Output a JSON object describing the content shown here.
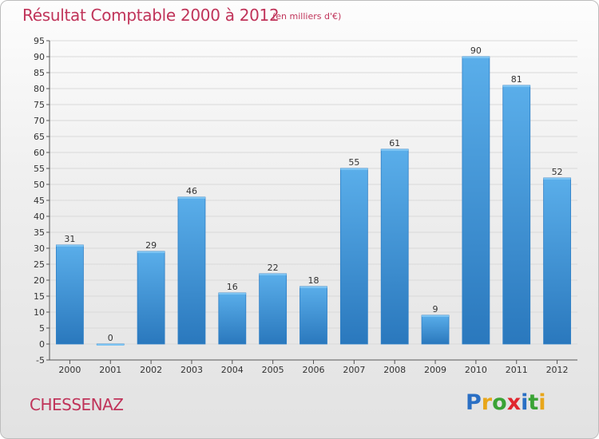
{
  "title": "Résultat Comptable 2000 à 2012",
  "subtitle": "(en milliers d'€)",
  "commune": "CHESSENAZ",
  "logo": {
    "letters": [
      "P",
      "r",
      "o",
      "x",
      "i",
      "t",
      "i"
    ],
    "colors": [
      "#2a6fc4",
      "#e8a61a",
      "#3aa335",
      "#e0262e",
      "#2a6fc4",
      "#3aa335",
      "#e8a61a"
    ]
  },
  "colors": {
    "bar_top": "#5aaeea",
    "bar_bottom": "#2a78bd",
    "bar_edge": "#2e7fc6",
    "grid": "#d9d9d9",
    "title": "#c0345a"
  },
  "chart_data": {
    "type": "bar",
    "title": "Résultat Comptable 2000 à 2012",
    "categories": [
      "2000",
      "2001",
      "2002",
      "2003",
      "2004",
      "2005",
      "2006",
      "2007",
      "2008",
      "2009",
      "2010",
      "2011",
      "2012"
    ],
    "values": [
      31,
      0,
      29,
      46,
      16,
      22,
      18,
      55,
      61,
      9,
      90,
      81,
      52
    ],
    "ylim": [
      -5,
      95
    ],
    "yticks": [
      -5,
      0,
      5,
      10,
      15,
      20,
      25,
      30,
      35,
      40,
      45,
      50,
      55,
      60,
      65,
      70,
      75,
      80,
      85,
      90,
      95
    ],
    "xlabel": "",
    "ylabel": "",
    "grid": true
  }
}
